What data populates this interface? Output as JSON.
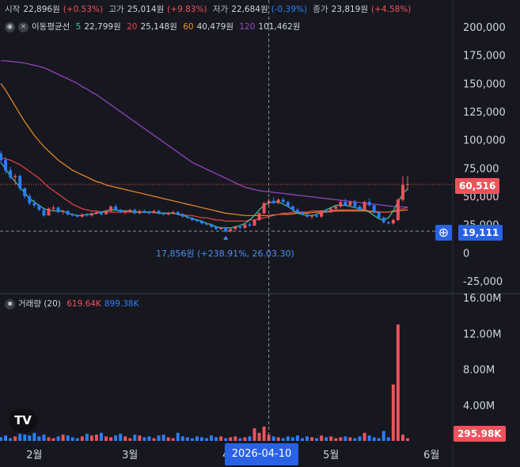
{
  "header": {
    "open_label": "시작",
    "open_value": "22,896원",
    "open_change": "(+0.53%)",
    "high_label": "고가",
    "high_value": "25,014원",
    "high_change": "(+9.83%)",
    "low_label": "저가",
    "low_value": "22,684원",
    "low_change": "(-0.39%)",
    "close_label": "종가",
    "close_value": "23,819원",
    "close_change": "(+4.58%)",
    "ma_label": "이동평균선",
    "ma5_period": "5",
    "ma5_value": "22,799원",
    "ma20_period": "20",
    "ma20_value": "25,148원",
    "ma60_period": "60",
    "ma60_value": "40,479원",
    "ma120_period": "120",
    "ma120_value": "101,462원",
    "volume_label": "거래량 (20)",
    "volume_value": "619.64K",
    "volume_ma_value": "899.38K"
  },
  "price_tags": {
    "last_price": "60,516",
    "crosshair_price": "19,111",
    "crosshair_date": "2026-04-10"
  },
  "annotation": {
    "low_text": "17,856원 (+238.91%, 26.03.30)"
  },
  "colors": {
    "up": "#f0525d",
    "down": "#2a7fff",
    "ma5": "#3ec89a",
    "ma20": "#e8414b",
    "ma60": "#f08c28",
    "ma120": "#9b45c8"
  },
  "chart_data": {
    "type": "candlestick",
    "y_ticks": [
      "200,000",
      "175,000",
      "150,000",
      "125,000",
      "100,000",
      "75,000",
      "50,000",
      "25,000",
      "0",
      "-25,000"
    ],
    "y_tick_values": [
      200000,
      175000,
      150000,
      125000,
      100000,
      75000,
      50000,
      25000,
      0,
      -25000
    ],
    "ylim": [
      -30000,
      210000
    ],
    "x_tick_labels": [
      "2월",
      "3월",
      "4월",
      "5월",
      "6월"
    ],
    "x_tick_index": [
      7,
      27,
      48,
      69,
      90
    ],
    "candles": [
      [
        88000,
        90000,
        80000,
        82000
      ],
      [
        82000,
        85000,
        70000,
        73000
      ],
      [
        73000,
        76000,
        65000,
        67000
      ],
      [
        67000,
        70000,
        60000,
        68000
      ],
      [
        68000,
        69000,
        55000,
        57000
      ],
      [
        57000,
        58000,
        48000,
        50000
      ],
      [
        50000,
        52000,
        42000,
        44000
      ],
      [
        44000,
        47000,
        40000,
        42000
      ],
      [
        42000,
        43000,
        37000,
        38000
      ],
      [
        38000,
        40000,
        32000,
        33000
      ],
      [
        33000,
        40000,
        33000,
        39000
      ],
      [
        39000,
        42000,
        37000,
        40000
      ],
      [
        40000,
        41000,
        35000,
        36000
      ],
      [
        36000,
        38000,
        34000,
        37000
      ],
      [
        37000,
        38000,
        33000,
        34000
      ],
      [
        34000,
        35000,
        32000,
        33000
      ],
      [
        33000,
        34000,
        31000,
        32000
      ],
      [
        32000,
        35000,
        31000,
        34000
      ],
      [
        34000,
        35000,
        32000,
        33000
      ],
      [
        33000,
        36000,
        32000,
        35000
      ],
      [
        35000,
        37000,
        34000,
        36000
      ],
      [
        36000,
        37000,
        33000,
        34000
      ],
      [
        34000,
        38000,
        34000,
        37000
      ],
      [
        37000,
        42000,
        36000,
        41000
      ],
      [
        41000,
        43000,
        37000,
        38000
      ],
      [
        38000,
        39000,
        35000,
        36000
      ],
      [
        36000,
        38000,
        34000,
        37000
      ],
      [
        37000,
        39000,
        36000,
        38000
      ],
      [
        38000,
        39000,
        34000,
        35000
      ],
      [
        35000,
        38000,
        34000,
        37000
      ],
      [
        37000,
        38000,
        35000,
        36000
      ],
      [
        36000,
        37000,
        34000,
        35000
      ],
      [
        35000,
        38000,
        35000,
        37000
      ],
      [
        37000,
        38000,
        34000,
        35000
      ],
      [
        35000,
        36000,
        33000,
        34000
      ],
      [
        34000,
        36000,
        33000,
        35000
      ],
      [
        35000,
        37000,
        34000,
        36000
      ],
      [
        36000,
        37000,
        33000,
        34000
      ],
      [
        34000,
        35000,
        31000,
        32000
      ],
      [
        32000,
        33000,
        30000,
        31000
      ],
      [
        31000,
        32000,
        28000,
        29000
      ],
      [
        29000,
        30000,
        27000,
        28000
      ],
      [
        28000,
        29000,
        25000,
        26000
      ],
      [
        26000,
        27000,
        24000,
        25000
      ],
      [
        25000,
        26000,
        22000,
        23000
      ],
      [
        23000,
        24000,
        20000,
        21000
      ],
      [
        21000,
        23000,
        20000,
        22000
      ],
      [
        22000,
        23000,
        18000,
        19000
      ],
      [
        19000,
        22000,
        18000,
        21000
      ],
      [
        21000,
        24000,
        20000,
        23000
      ],
      [
        23000,
        25000,
        21000,
        22000
      ],
      [
        22000,
        26000,
        21000,
        25000
      ],
      [
        25000,
        27000,
        23000,
        24000
      ],
      [
        24000,
        30000,
        24000,
        29000
      ],
      [
        29000,
        36000,
        28000,
        35000
      ],
      [
        35000,
        45000,
        34000,
        44000
      ],
      [
        44000,
        48000,
        42000,
        46000
      ],
      [
        46000,
        49000,
        43000,
        44000
      ],
      [
        44000,
        48000,
        43000,
        47000
      ],
      [
        47000,
        49000,
        44000,
        45000
      ],
      [
        45000,
        46000,
        40000,
        41000
      ],
      [
        41000,
        42000,
        37000,
        38000
      ],
      [
        38000,
        40000,
        35000,
        36000
      ],
      [
        36000,
        37000,
        33000,
        34000
      ],
      [
        34000,
        35000,
        31000,
        32000
      ],
      [
        32000,
        34000,
        30000,
        33000
      ],
      [
        33000,
        35000,
        31000,
        32000
      ],
      [
        32000,
        38000,
        31000,
        37000
      ],
      [
        37000,
        39000,
        35000,
        36000
      ],
      [
        36000,
        40000,
        35000,
        39000
      ],
      [
        39000,
        42000,
        37000,
        41000
      ],
      [
        41000,
        47000,
        40000,
        45000
      ],
      [
        45000,
        48000,
        41000,
        42000
      ],
      [
        42000,
        46000,
        41000,
        45000
      ],
      [
        45000,
        47000,
        40000,
        41000
      ],
      [
        41000,
        42000,
        37000,
        38000
      ],
      [
        38000,
        46000,
        37000,
        45000
      ],
      [
        45000,
        48000,
        41000,
        42000
      ],
      [
        42000,
        43000,
        35000,
        36000
      ],
      [
        36000,
        37000,
        30000,
        31000
      ],
      [
        31000,
        32000,
        26000,
        27000
      ],
      [
        27000,
        28000,
        25000,
        26000
      ],
      [
        26000,
        30000,
        25000,
        29000
      ],
      [
        29000,
        48000,
        28000,
        47000
      ],
      [
        47000,
        68000,
        45000,
        60000
      ],
      [
        60000,
        68000,
        55000,
        61000
      ]
    ],
    "ma5": [
      80000,
      74000,
      68000,
      63000,
      58000,
      53000,
      48000,
      45000,
      42000,
      39000,
      38000,
      37000,
      37000,
      37000,
      35000,
      34000,
      33000,
      33000,
      34000,
      34000,
      35000,
      36000,
      37000,
      38000,
      38000,
      37000,
      37000,
      37000,
      36000,
      36000,
      36000,
      36000,
      36000,
      35000,
      35000,
      35000,
      35000,
      34000,
      33000,
      32000,
      30000,
      29000,
      28000,
      26000,
      25000,
      23000,
      22000,
      22000,
      22000,
      23000,
      24000,
      26000,
      29000,
      33000,
      38000,
      42000,
      44000,
      45000,
      45000,
      43000,
      41000,
      38000,
      35000,
      34000,
      33000,
      33000,
      34000,
      36000,
      38000,
      40000,
      42000,
      42000,
      42000,
      41000,
      40000,
      39000,
      38000,
      36000,
      33000,
      30000,
      29000,
      31000,
      37000,
      45000,
      52000,
      57000
    ],
    "ma20": [
      84000,
      83000,
      82000,
      80000,
      78000,
      75000,
      72000,
      69000,
      66000,
      62000,
      58000,
      55000,
      52000,
      49000,
      46000,
      43000,
      41000,
      39000,
      38000,
      37000,
      37000,
      36000,
      36000,
      36000,
      36000,
      36000,
      36000,
      36000,
      36000,
      36000,
      36000,
      36000,
      36000,
      35000,
      35000,
      35000,
      35000,
      34000,
      34000,
      33000,
      33000,
      32000,
      31000,
      31000,
      30000,
      29000,
      29000,
      28000,
      28000,
      28000,
      28000,
      28000,
      29000,
      29000,
      30000,
      31000,
      32000,
      33000,
      34000,
      35000,
      35000,
      36000,
      36000,
      36000,
      36000,
      37000,
      37000,
      37000,
      37000,
      37000,
      38000,
      38000,
      38000,
      38000,
      38000,
      38000,
      38000,
      37000,
      37000,
      36000,
      36000,
      36000,
      37000,
      38000,
      39000,
      40000
    ],
    "ma60": [
      150000,
      144000,
      137000,
      130000,
      123000,
      116000,
      110000,
      104000,
      99000,
      94000,
      90000,
      86000,
      82000,
      79000,
      76000,
      73000,
      71000,
      69000,
      67000,
      65000,
      63000,
      62000,
      60000,
      59000,
      58000,
      57000,
      56000,
      55000,
      54000,
      53000,
      52000,
      51000,
      50000,
      49000,
      48000,
      47000,
      46000,
      45000,
      44000,
      43000,
      42000,
      41000,
      40000,
      39000,
      38000,
      37000,
      36000,
      35000,
      34500,
      34000,
      33500,
      33000,
      33000,
      33000,
      33000,
      33000,
      33000,
      33500,
      34000,
      34000,
      34000,
      34500,
      35000,
      35000,
      35000,
      35500,
      36000,
      36000,
      36000,
      36500,
      37000,
      37000,
      37000,
      37000,
      37000,
      37000,
      37000,
      36500,
      36000,
      36000,
      36000,
      36000,
      36500,
      37000,
      37500,
      38000
    ],
    "ma120": [
      170000,
      170000,
      169500,
      169000,
      168500,
      168000,
      167000,
      166000,
      165000,
      164000,
      162000,
      160000,
      158000,
      156000,
      154000,
      152000,
      150000,
      147000,
      145000,
      142000,
      140000,
      137000,
      134000,
      131000,
      128000,
      125000,
      122000,
      119000,
      116000,
      113000,
      110000,
      107000,
      104000,
      101000,
      98000,
      95000,
      92000,
      89000,
      86000,
      83000,
      80000,
      78000,
      76000,
      74000,
      72000,
      70000,
      68000,
      66000,
      64000,
      62000,
      60000,
      58000,
      57000,
      56000,
      55000,
      54500,
      54000,
      53500,
      53000,
      52500,
      52000,
      51500,
      51000,
      50500,
      50000,
      49500,
      49000,
      48500,
      48000,
      47500,
      47000,
      46500,
      46000,
      45500,
      45000,
      44500,
      44000,
      43500,
      43000,
      42500,
      42000,
      41500,
      41000,
      40800,
      40600,
      40479
    ],
    "volume": [
      400000,
      600000,
      300000,
      500000,
      800000,
      700000,
      600000,
      900000,
      500000,
      700000,
      400000,
      300000,
      500000,
      700000,
      600000,
      400000,
      300000,
      500000,
      800000,
      600000,
      700000,
      900000,
      500000,
      400000,
      600000,
      800000,
      500000,
      300000,
      700000,
      600000,
      400000,
      500000,
      300000,
      600000,
      700000,
      400000,
      300000,
      900000,
      500000,
      400000,
      300000,
      500000,
      400000,
      300000,
      600000,
      400000,
      500000,
      300000,
      400000,
      500000,
      300000,
      400000,
      500000,
      1400000,
      900000,
      1600000,
      700000,
      500000,
      400000,
      300000,
      500000,
      400000,
      600000,
      300000,
      500000,
      400000,
      300000,
      600000,
      400000,
      500000,
      300000,
      400000,
      500000,
      400000,
      300000,
      500000,
      900000,
      600000,
      400000,
      300000,
      1100000,
      400000,
      6300000,
      13000000,
      700000,
      295980
    ],
    "volume_ylim": [
      0,
      16500000
    ],
    "volume_ticks": [
      "16.00M",
      "12.00M",
      "8.00M",
      "4.00M"
    ],
    "volume_tick_values": [
      16000000,
      12000000,
      8000000,
      4000000
    ],
    "volume_last_tag": "295.98K",
    "last_price_value": 60516,
    "crosshair_price_value": 19111,
    "crosshair_index": 56,
    "low_marker_index": 47
  }
}
